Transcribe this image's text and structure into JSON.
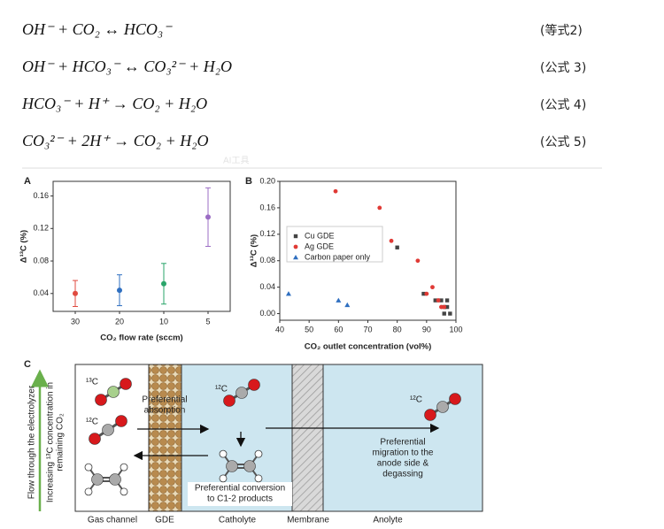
{
  "equations": [
    {
      "formula": "OH⁻ + CO₂ ↔ HCO₃⁻",
      "label": "(等式2)"
    },
    {
      "formula": "OH⁻ + HCO₃⁻ ↔ CO₃²⁻ + H₂O",
      "label": "(公式 3)"
    },
    {
      "formula": "HCO₃⁻ + H⁺ → CO₂ + H₂O",
      "label": "(公式 4)"
    },
    {
      "formula": "CO₃²⁻ + 2H⁺ → CO₂ + H₂O",
      "label": "(公式 5)"
    }
  ],
  "toolbar_label": "AI工具",
  "chart_data": [
    {
      "type": "errorbar",
      "panel": "A",
      "categories": [
        "30",
        "20",
        "10",
        "5"
      ],
      "values": [
        0.04,
        0.044,
        0.052,
        0.134
      ],
      "errors": [
        0.016,
        0.019,
        0.025,
        0.036
      ],
      "colors": [
        "#e04a3f",
        "#2f6fc0",
        "#2aa56a",
        "#9b6cc4"
      ],
      "xlabel": "CO₂ flow rate (sccm)",
      "ylabel": "Δ¹³C (%)",
      "ylim": [
        0.018,
        0.178
      ],
      "yticks": [
        0.04,
        0.08,
        0.12,
        0.16
      ]
    },
    {
      "type": "scatter",
      "panel": "B",
      "xlabel": "CO₂ outlet concentration (vol%)",
      "ylabel": "Δ¹³C (%)",
      "xlim": [
        40,
        100
      ],
      "xticks": [
        40,
        50,
        60,
        70,
        80,
        90,
        100
      ],
      "ylim": [
        -0.01,
        0.2
      ],
      "yticks": [
        {
          "value": 0,
          "label": "0.00"
        },
        0.04,
        0.08,
        0.12,
        0.16,
        {
          "value": 0.2,
          "label": "0.20"
        }
      ],
      "legend": "upper left",
      "series": [
        {
          "name": "Cu GDE",
          "color": "#444444",
          "marker": "square",
          "x": [
            80,
            89,
            93,
            95,
            96,
            97,
            96,
            97,
            98
          ],
          "values": [
            0.1,
            0.03,
            0.02,
            0.02,
            0.01,
            0.02,
            0.0,
            0.01,
            0.0
          ]
        },
        {
          "name": "Ag GDE",
          "color": "#e03a35",
          "marker": "circle",
          "x": [
            59,
            74,
            78,
            87,
            90,
            92,
            94,
            95,
            96
          ],
          "values": [
            0.185,
            0.16,
            0.11,
            0.08,
            0.03,
            0.04,
            0.02,
            0.01,
            0.01
          ]
        },
        {
          "name": "Carbon paper only",
          "color": "#2f6fc0",
          "marker": "triangle",
          "x": [
            43,
            60,
            63
          ],
          "values": [
            0.03,
            0.02,
            0.013
          ]
        }
      ]
    }
  ],
  "diagram": {
    "panel": "C",
    "side_label": "Flow through the electrolyzer",
    "side_sublabel": [
      "Increasing ¹³C concentration in",
      "remaining CO₂"
    ],
    "isotope_13": "¹³C",
    "isotope_12_gas": "¹²C",
    "isotope_12_catholyte": "¹²C",
    "isotope_12_out": "¹²C",
    "absorption": [
      "Preferential",
      "absorption"
    ],
    "conversion": [
      "Preferential conversion",
      "to C1-2 products"
    ],
    "migration": [
      "Preferential",
      "migration to the",
      "anode side &",
      "degassing"
    ],
    "regions": [
      "Gas channel",
      "GDE",
      "Catholyte",
      "Membrane",
      "Anolyte"
    ]
  }
}
